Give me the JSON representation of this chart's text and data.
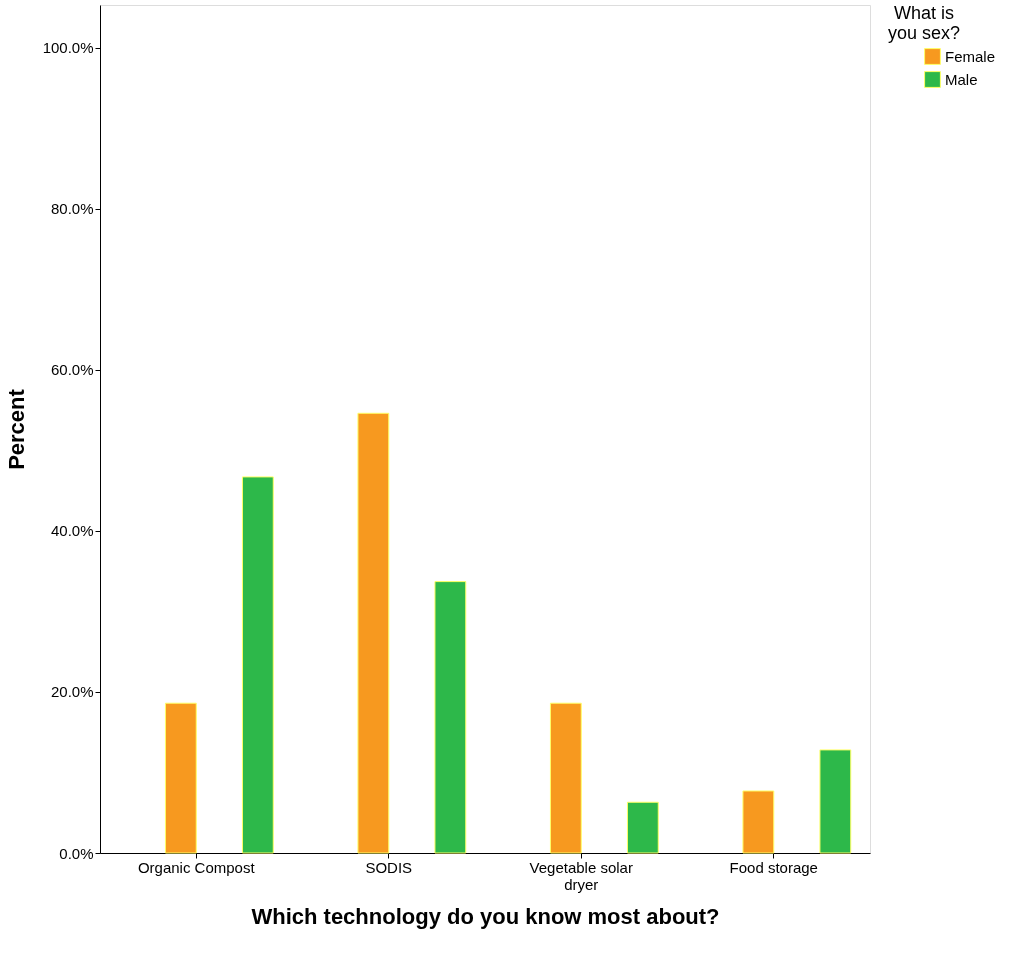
{
  "chart_data": {
    "type": "bar",
    "xlabel": "Which technology do you know most about?",
    "ylabel": "Percent",
    "legend_title": "What is you sex?",
    "categories": [
      "Organic Compost",
      "SODIS",
      "Vegetable solar dryer",
      "Food storage"
    ],
    "series": [
      {
        "name": "Female",
        "color": "#f7991f",
        "values": [
          18.6,
          54.6,
          18.6,
          7.7
        ]
      },
      {
        "name": "Male",
        "color": "#2db84a",
        "values": [
          46.7,
          33.7,
          6.3,
          12.8
        ]
      }
    ],
    "ylim": [
      0,
      105.3
    ],
    "yticks": [
      {
        "value": 0,
        "label": "0.0%"
      },
      {
        "value": 20,
        "label": "20.0%"
      },
      {
        "value": 40,
        "label": "40.0%"
      },
      {
        "value": 60,
        "label": "60.0%"
      },
      {
        "value": 80,
        "label": "80.0%"
      },
      {
        "value": 100,
        "label": "100.0%"
      }
    ],
    "grid": false,
    "legend": "top right"
  }
}
